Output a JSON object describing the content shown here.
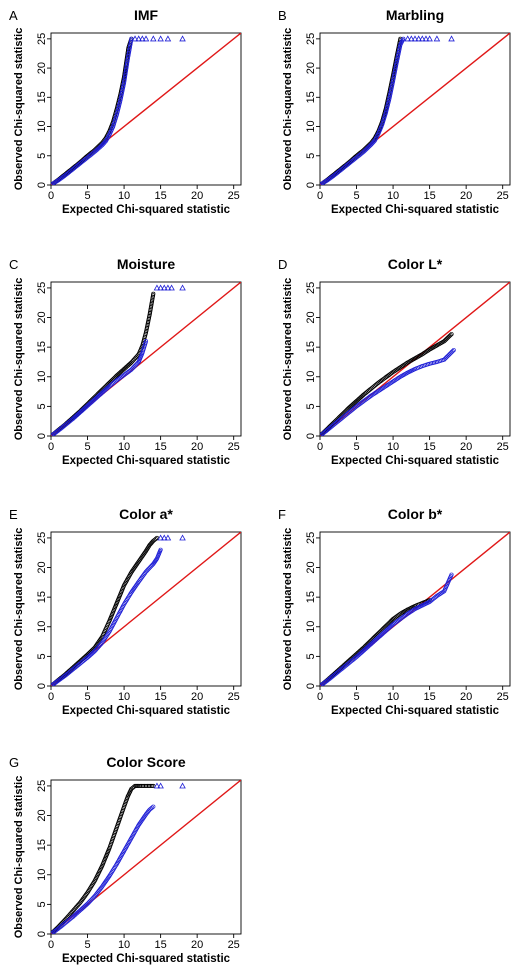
{
  "figure": {
    "xlabel": "Expected Chi-squared statistic",
    "ylabel": "Observed Chi-squared statistic",
    "tick_labels": [
      "0",
      "5",
      "10",
      "15",
      "20",
      "25"
    ],
    "colors": {
      "black_series": "#000000",
      "blue_series": "#1f1fd6",
      "reference_line": "#e01818"
    }
  },
  "chart_data": [
    {
      "type": "scatter",
      "panel_letter": "A",
      "title": "IMF",
      "xlabel": "Expected Chi-squared statistic",
      "ylabel": "Observed Chi-squared statistic",
      "xlim": [
        0,
        26
      ],
      "ylim": [
        0,
        26
      ],
      "grid": false,
      "reference_line": {
        "x": [
          0,
          26
        ],
        "y": [
          0,
          26
        ]
      },
      "series": [
        {
          "marker": "circle",
          "color": "#000000",
          "x": [
            0,
            1,
            2,
            3,
            4,
            5,
            6,
            7,
            7.5,
            8,
            8.5,
            9,
            9.5,
            10,
            10.3,
            10.6,
            11
          ],
          "y": [
            0,
            0.9,
            1.9,
            2.9,
            3.9,
            5.0,
            6.0,
            7.2,
            8.0,
            9.2,
            10.8,
            13.0,
            15.5,
            18.5,
            21.0,
            23.5,
            25
          ]
        },
        {
          "marker": "circle",
          "color": "#1f1fd6",
          "x": [
            0,
            1,
            2,
            3,
            4,
            5,
            6,
            7,
            7.5,
            8,
            8.5,
            9,
            9.5,
            10,
            10.5,
            11
          ],
          "y": [
            0,
            0.8,
            1.7,
            2.7,
            3.7,
            4.7,
            5.7,
            6.8,
            7.5,
            8.6,
            10.0,
            12.0,
            14.5,
            17.5,
            21.5,
            25
          ]
        },
        {
          "marker": "triangle",
          "color": "#1f1fd6",
          "x": [
            11.5,
            12,
            12.5,
            13,
            14,
            15,
            16,
            18
          ],
          "y": [
            25,
            25,
            25,
            25,
            25,
            25,
            25,
            25
          ]
        }
      ]
    },
    {
      "type": "scatter",
      "panel_letter": "B",
      "title": "Marbling",
      "xlabel": "Expected Chi-squared statistic",
      "ylabel": "Observed Chi-squared statistic",
      "xlim": [
        0,
        26
      ],
      "ylim": [
        0,
        26
      ],
      "grid": false,
      "reference_line": {
        "x": [
          0,
          26
        ],
        "y": [
          0,
          26
        ]
      },
      "series": [
        {
          "marker": "circle",
          "color": "#000000",
          "x": [
            0,
            1,
            2,
            3,
            4,
            5,
            6,
            7,
            7.5,
            8,
            8.5,
            9,
            9.5,
            10,
            10.5,
            11
          ],
          "y": [
            0,
            0.9,
            1.9,
            2.9,
            3.9,
            5.0,
            6.0,
            7.2,
            8.0,
            9.2,
            10.8,
            13.0,
            15.8,
            18.8,
            22.0,
            25
          ]
        },
        {
          "marker": "circle",
          "color": "#1f1fd6",
          "x": [
            0,
            1,
            2,
            3,
            4,
            5,
            6,
            7,
            7.5,
            8,
            8.5,
            9,
            9.5,
            10,
            10.5,
            11,
            11.4
          ],
          "y": [
            0,
            0.8,
            1.7,
            2.7,
            3.7,
            4.7,
            5.7,
            6.9,
            7.6,
            8.8,
            10.3,
            12.3,
            14.8,
            17.8,
            21.0,
            24.0,
            25
          ]
        },
        {
          "marker": "triangle",
          "color": "#1f1fd6",
          "x": [
            12,
            12.5,
            13,
            13.5,
            14,
            14.5,
            15,
            16,
            18
          ],
          "y": [
            25,
            25,
            25,
            25,
            25,
            25,
            25,
            25,
            25
          ]
        }
      ]
    },
    {
      "type": "scatter",
      "panel_letter": "C",
      "title": "Moisture",
      "xlabel": "Expected Chi-squared statistic",
      "ylabel": "Observed Chi-squared statistic",
      "xlim": [
        0,
        26
      ],
      "ylim": [
        0,
        26
      ],
      "grid": false,
      "reference_line": {
        "x": [
          0,
          26
        ],
        "y": [
          0,
          26
        ]
      },
      "series": [
        {
          "marker": "circle",
          "color": "#000000",
          "x": [
            0,
            1,
            2,
            3,
            4,
            5,
            6,
            7,
            8,
            9,
            10,
            11,
            12,
            12.5,
            13,
            13.5,
            14
          ],
          "y": [
            0,
            1.0,
            2.0,
            3.1,
            4.2,
            5.4,
            6.6,
            7.8,
            9.0,
            10.2,
            11.3,
            12.4,
            13.8,
            15.2,
            17.5,
            20.5,
            24
          ]
        },
        {
          "marker": "circle",
          "color": "#1f1fd6",
          "x": [
            0,
            1,
            2,
            3,
            4,
            5,
            6,
            7,
            8,
            9,
            10,
            11,
            12,
            12.5,
            13
          ],
          "y": [
            0,
            0.9,
            1.9,
            2.9,
            4.0,
            5.1,
            6.2,
            7.3,
            8.4,
            9.4,
            10.3,
            11.2,
            12.5,
            14.0,
            16.0
          ]
        },
        {
          "marker": "triangle",
          "color": "#1f1fd6",
          "x": [
            14.5,
            15,
            15.5,
            16,
            16.5,
            18
          ],
          "y": [
            25,
            25,
            25,
            25,
            25,
            25
          ]
        }
      ]
    },
    {
      "type": "scatter",
      "panel_letter": "D",
      "title": "Color L*",
      "xlabel": "Expected Chi-squared statistic",
      "ylabel": "Observed Chi-squared statistic",
      "xlim": [
        0,
        26
      ],
      "ylim": [
        0,
        26
      ],
      "grid": false,
      "reference_line": {
        "x": [
          0,
          26
        ],
        "y": [
          0,
          26
        ]
      },
      "series": [
        {
          "marker": "circle",
          "color": "#000000",
          "x": [
            0,
            1,
            2,
            3,
            4,
            5,
            6,
            7,
            8,
            9,
            10,
            11,
            12,
            13,
            14,
            15,
            16,
            17,
            18
          ],
          "y": [
            0,
            1.2,
            2.4,
            3.6,
            4.8,
            5.9,
            7.0,
            8.0,
            9.0,
            9.9,
            10.8,
            11.6,
            12.4,
            13.1,
            13.8,
            14.6,
            15.3,
            16.0,
            17.2
          ]
        },
        {
          "marker": "circle",
          "color": "#1f1fd6",
          "x": [
            0,
            1,
            2,
            3,
            4,
            5,
            6,
            7,
            8,
            9,
            10,
            11,
            12,
            13,
            14,
            15,
            16,
            17,
            18.3
          ],
          "y": [
            0,
            1.0,
            2.0,
            3.0,
            4.0,
            5.0,
            5.9,
            6.8,
            7.6,
            8.4,
            9.2,
            10.0,
            10.7,
            11.3,
            11.8,
            12.2,
            12.5,
            12.9,
            14.5
          ]
        }
      ]
    },
    {
      "type": "scatter",
      "panel_letter": "E",
      "title": "Color a*",
      "xlabel": "Expected Chi-squared statistic",
      "ylabel": "Observed Chi-squared statistic",
      "xlim": [
        0,
        26
      ],
      "ylim": [
        0,
        26
      ],
      "grid": false,
      "reference_line": {
        "x": [
          0,
          26
        ],
        "y": [
          0,
          26
        ]
      },
      "series": [
        {
          "marker": "circle",
          "color": "#000000",
          "x": [
            0,
            1,
            2,
            3,
            4,
            5,
            6,
            7,
            8,
            9,
            10,
            11,
            12,
            13,
            13.5,
            14,
            14.5
          ],
          "y": [
            0,
            1.0,
            2.0,
            3.1,
            4.2,
            5.3,
            6.5,
            8.3,
            11.0,
            14.0,
            17.0,
            19.2,
            21.0,
            22.8,
            23.8,
            24.5,
            25
          ]
        },
        {
          "marker": "circle",
          "color": "#1f1fd6",
          "x": [
            0,
            1,
            2,
            3,
            4,
            5,
            6,
            7,
            8,
            9,
            10,
            11,
            12,
            13,
            14,
            14.5,
            15
          ],
          "y": [
            0,
            0.9,
            1.8,
            2.8,
            3.8,
            4.8,
            5.9,
            7.3,
            9.2,
            11.5,
            13.8,
            15.8,
            17.6,
            19.3,
            20.6,
            21.5,
            23.0
          ]
        },
        {
          "marker": "triangle",
          "color": "#1f1fd6",
          "x": [
            15,
            15.5,
            16,
            18
          ],
          "y": [
            25,
            25,
            25,
            25
          ]
        }
      ]
    },
    {
      "type": "scatter",
      "panel_letter": "F",
      "title": "Color b*",
      "xlabel": "Expected Chi-squared statistic",
      "ylabel": "Observed Chi-squared statistic",
      "xlim": [
        0,
        26
      ],
      "ylim": [
        0,
        26
      ],
      "grid": false,
      "reference_line": {
        "x": [
          0,
          26
        ],
        "y": [
          0,
          26
        ]
      },
      "series": [
        {
          "marker": "circle",
          "color": "#000000",
          "x": [
            0,
            1,
            2,
            3,
            4,
            5,
            6,
            7,
            8,
            9,
            10,
            11,
            12,
            13,
            14,
            15
          ],
          "y": [
            0,
            1.0,
            2.1,
            3.2,
            4.3,
            5.4,
            6.5,
            7.7,
            8.9,
            10.1,
            11.3,
            12.2,
            12.9,
            13.5,
            14.0,
            14.5
          ]
        },
        {
          "marker": "circle",
          "color": "#1f1fd6",
          "x": [
            0,
            1,
            2,
            3,
            4,
            5,
            6,
            7,
            8,
            9,
            10,
            11,
            12,
            13,
            14,
            15,
            16,
            17,
            18
          ],
          "y": [
            0,
            0.9,
            1.9,
            2.9,
            3.9,
            4.9,
            6.0,
            7.1,
            8.2,
            9.3,
            10.4,
            11.3,
            12.2,
            13.0,
            13.6,
            14.2,
            15.2,
            16.0,
            18.8
          ]
        }
      ]
    },
    {
      "type": "scatter",
      "panel_letter": "G",
      "title": "Color Score",
      "xlabel": "Expected Chi-squared statistic",
      "ylabel": "Observed Chi-squared statistic",
      "xlim": [
        0,
        26
      ],
      "ylim": [
        0,
        26
      ],
      "grid": false,
      "reference_line": {
        "x": [
          0,
          26
        ],
        "y": [
          0,
          26
        ]
      },
      "series": [
        {
          "marker": "circle",
          "color": "#000000",
          "x": [
            0,
            1,
            2,
            3,
            4,
            5,
            6,
            7,
            8,
            9,
            10,
            10.5,
            11,
            11.5,
            12,
            13,
            14
          ],
          "y": [
            0,
            1.2,
            2.5,
            3.9,
            5.3,
            7.0,
            9.0,
            11.5,
            14.5,
            18.0,
            21.5,
            23.2,
            24.5,
            25,
            25,
            25,
            25
          ]
        },
        {
          "marker": "circle",
          "color": "#1f1fd6",
          "x": [
            0,
            1,
            2,
            3,
            4,
            5,
            6,
            7,
            8,
            9,
            10,
            11,
            12,
            13,
            13.5,
            14
          ],
          "y": [
            0,
            0.9,
            1.9,
            2.9,
            4.0,
            5.1,
            6.4,
            8.0,
            9.8,
            11.8,
            14.0,
            16.2,
            18.4,
            20.2,
            21.0,
            21.5
          ]
        },
        {
          "marker": "triangle",
          "color": "#1f1fd6",
          "x": [
            14.5,
            15,
            18
          ],
          "y": [
            25,
            25,
            25
          ]
        }
      ]
    }
  ]
}
